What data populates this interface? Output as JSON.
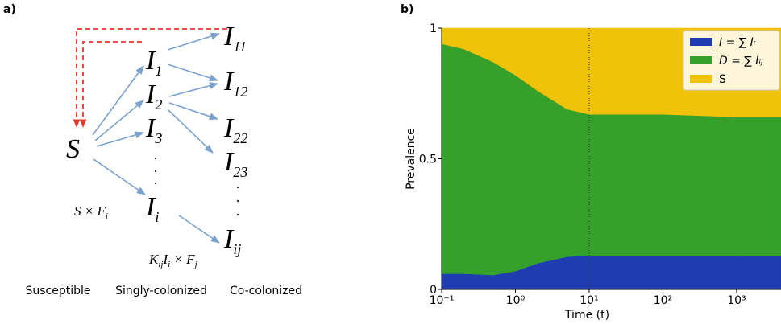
{
  "diagram": {
    "panel_label": "a)",
    "nodes": [
      {
        "text": "S",
        "sub": ""
      },
      {
        "text": "I",
        "sub": "1"
      },
      {
        "text": "I",
        "sub": "2"
      },
      {
        "text": "I",
        "sub": "3"
      },
      {
        "text": "I",
        "sub": "i"
      },
      {
        "text": "I",
        "sub": "11"
      },
      {
        "text": "I",
        "sub": "12"
      },
      {
        "text": "I",
        "sub": "22"
      },
      {
        "text": "I",
        "sub": "23"
      },
      {
        "text": "I",
        "sub": "ij"
      }
    ],
    "rate_single": [
      {
        "text": "S × F",
        "sub": "i"
      }
    ],
    "rate_co": [
      {
        "text": "K",
        "sub": "ij"
      },
      {
        "text": "I",
        "sub": "i"
      },
      {
        "text": " × F",
        "sub": "j"
      }
    ],
    "columns": [
      "Susceptible",
      "Singly-colonized",
      "Co-colonized"
    ]
  },
  "chart_data": {
    "type": "stacked_area",
    "panel_label": "b)",
    "x_label": "Time (t)",
    "y_label": "Prevalence",
    "xscale": "log",
    "x": [
      0.1,
      0.2,
      0.5,
      1,
      2,
      5,
      10,
      100,
      1000,
      4000
    ],
    "series": [
      {
        "name": "I = ∑ Iᵢ",
        "color": "#1f3db0",
        "values": [
          0.06,
          0.06,
          0.055,
          0.07,
          0.1,
          0.125,
          0.13,
          0.13,
          0.13,
          0.13
        ]
      },
      {
        "name": "D = ∑ Iᵢⱼ",
        "color": "#35a12a",
        "values": [
          0.88,
          0.86,
          0.815,
          0.75,
          0.66,
          0.565,
          0.54,
          0.54,
          0.53,
          0.53
        ]
      },
      {
        "name": "S",
        "color": "#f0c20a",
        "values": [
          0.06,
          0.08,
          0.13,
          0.18,
          0.24,
          0.31,
          0.33,
          0.33,
          0.34,
          0.34
        ]
      }
    ],
    "xlim": [
      0.1,
      4000
    ],
    "ylim": [
      0,
      1
    ],
    "xticks": [
      {
        "value": 0.1,
        "label": "10⁻¹"
      },
      {
        "value": 1,
        "label": "10⁰"
      },
      {
        "value": 10,
        "label": "10¹"
      },
      {
        "value": 100,
        "label": "10²"
      },
      {
        "value": 1000,
        "label": "10³"
      }
    ],
    "yticks": [
      0,
      0.5,
      1
    ],
    "vline": 10,
    "legend": "upper right"
  }
}
